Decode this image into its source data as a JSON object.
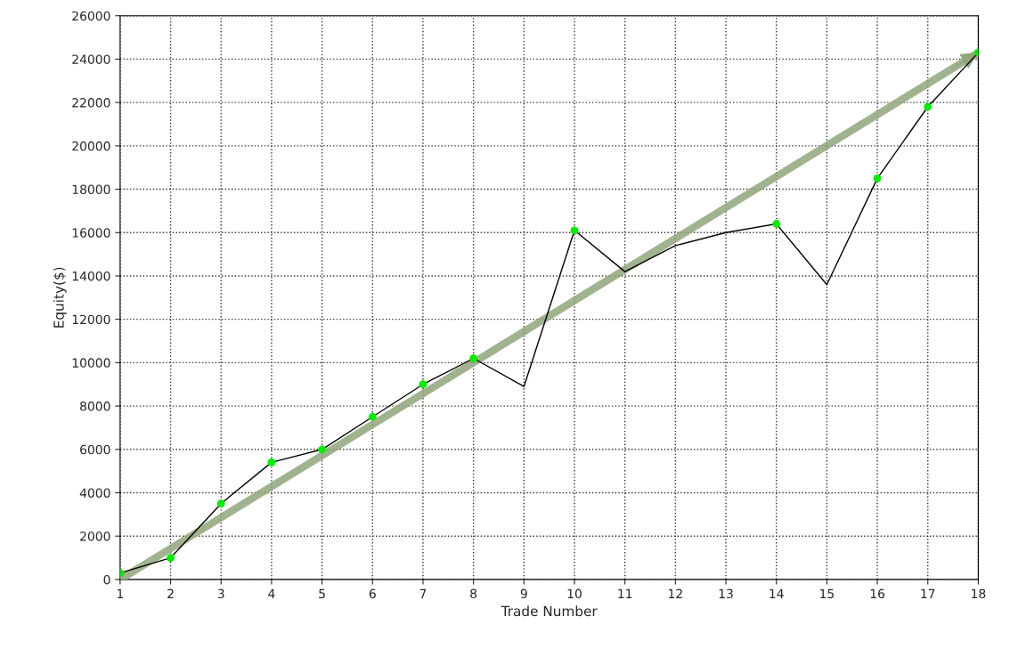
{
  "chart_data": {
    "type": "line",
    "xlabel": "Trade Number",
    "ylabel": "Equity($)",
    "x": [
      1,
      2,
      3,
      4,
      5,
      6,
      7,
      8,
      9,
      10,
      11,
      12,
      13,
      14,
      15,
      16,
      17,
      18
    ],
    "series": [
      {
        "color": "#000000",
        "marker": "none",
        "values": [
          300,
          1000,
          3500,
          5400,
          6000,
          7500,
          9000,
          10200,
          8900,
          16100,
          14200,
          15400,
          16000,
          16400,
          13600,
          18500,
          21800,
          24300
        ]
      },
      {
        "type": "line",
        "color": "#8fa67a",
        "marker": "none",
        "x": [
          1,
          18
        ],
        "values": [
          0,
          24300
        ]
      },
      {
        "type": "scatter",
        "color": "#00ee00",
        "marker": "circle",
        "x": [
          1,
          2,
          3,
          4,
          5,
          6,
          7,
          8,
          10,
          14,
          16,
          17,
          18
        ],
        "values": [
          300,
          1000,
          3500,
          5400,
          6000,
          7500,
          9000,
          10200,
          16100,
          16400,
          18500,
          21800,
          24300
        ]
      }
    ],
    "xlim": [
      1,
      18
    ],
    "xticks": [
      1,
      2,
      3,
      4,
      5,
      6,
      7,
      8,
      9,
      10,
      11,
      12,
      13,
      14,
      15,
      16,
      17,
      18
    ],
    "ylim": [
      0,
      26000
    ],
    "yticks": [
      0,
      2000,
      4000,
      6000,
      8000,
      10000,
      12000,
      14000,
      16000,
      18000,
      20000,
      22000,
      24000,
      26000
    ],
    "grid": true,
    "legend": false
  }
}
